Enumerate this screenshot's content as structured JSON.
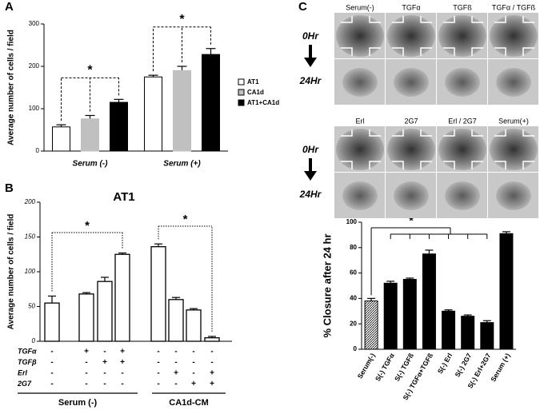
{
  "panel_labels": [
    "A",
    "B",
    "C"
  ],
  "chart_data": [
    {
      "type": "bar",
      "ylabel": "Average number of cells / field",
      "categories": [
        "Serum (-)",
        "Serum (+)"
      ],
      "series": [
        {
          "name": "AT1",
          "color": "#ffffff",
          "values": [
            57,
            175
          ],
          "errors": [
            5,
            4
          ]
        },
        {
          "name": "CA1d",
          "color": "#c0c0c0",
          "values": [
            76,
            190
          ],
          "errors": [
            8,
            10
          ]
        },
        {
          "name": "AT1+CA1d",
          "color": "#000000",
          "values": [
            115,
            228
          ],
          "errors": [
            7,
            14
          ]
        }
      ],
      "ylim": [
        0,
        300
      ],
      "yticks": [
        0,
        100,
        200,
        300
      ],
      "annotations": [
        "*",
        "*"
      ]
    },
    {
      "type": "bar",
      "title": "AT1",
      "ylabel": "Average number of cells / field",
      "categories": [
        null,
        null,
        null,
        null,
        null,
        null,
        null,
        null
      ],
      "values": [
        55,
        68,
        86,
        125,
        136,
        60,
        45,
        5
      ],
      "errors": [
        10,
        2,
        6,
        2,
        4,
        3,
        2,
        2
      ],
      "color": "#ffffff",
      "ylim": [
        0,
        200
      ],
      "yticks": [
        0,
        50,
        100,
        150,
        200
      ],
      "condition_rows": [
        {
          "name": "TGFα",
          "signs": [
            "-",
            "+",
            "-",
            "+",
            "-",
            "-",
            "-",
            "-"
          ]
        },
        {
          "name": "TGFβ",
          "signs": [
            "-",
            "-",
            "+",
            "+",
            "-",
            "-",
            "-",
            "-"
          ]
        },
        {
          "name": "Erl",
          "signs": [
            "-",
            "-",
            "-",
            "-",
            "-",
            "+",
            "-",
            "+"
          ]
        },
        {
          "name": "2G7",
          "signs": [
            "-",
            "-",
            "-",
            "-",
            "-",
            "-",
            "+",
            "+"
          ]
        }
      ],
      "groups": [
        "Serum (-)",
        "CA1d-CM"
      ],
      "annotations": [
        "*",
        "*"
      ]
    },
    {
      "type": "bar",
      "ylabel": "% Closure after 24 hr",
      "categories": [
        "Serum(-)",
        "S(-) TGFα",
        "S(-) TGFß",
        "S(-) TGFα+TGFß",
        "S(-) Erl",
        "S(-) 2G7",
        "S(-) Erl+2G7",
        "Serum (+)"
      ],
      "values": [
        38,
        52,
        55,
        75,
        30,
        26,
        21,
        91
      ],
      "errors": [
        2,
        1.5,
        1,
        3,
        1,
        1,
        1.5,
        1.5
      ],
      "colors": [
        "hatch",
        "#000000",
        "#000000",
        "#000000",
        "#000000",
        "#000000",
        "#000000",
        "#000000"
      ],
      "ylim": [
        0,
        100
      ],
      "yticks": [
        0,
        20,
        40,
        60,
        80,
        100
      ],
      "annotations": [
        "*"
      ]
    }
  ],
  "micrographs": [
    {
      "columns": [
        "Serum(-)",
        "TGFα",
        "TGFß",
        "TGFα / TGFß"
      ],
      "rows": [
        "0Hr",
        "24Hr"
      ]
    },
    {
      "columns": [
        "Erl",
        "2G7",
        "Erl / 2G7",
        "Serum(+)"
      ],
      "rows": [
        "0Hr",
        "24Hr"
      ]
    }
  ]
}
